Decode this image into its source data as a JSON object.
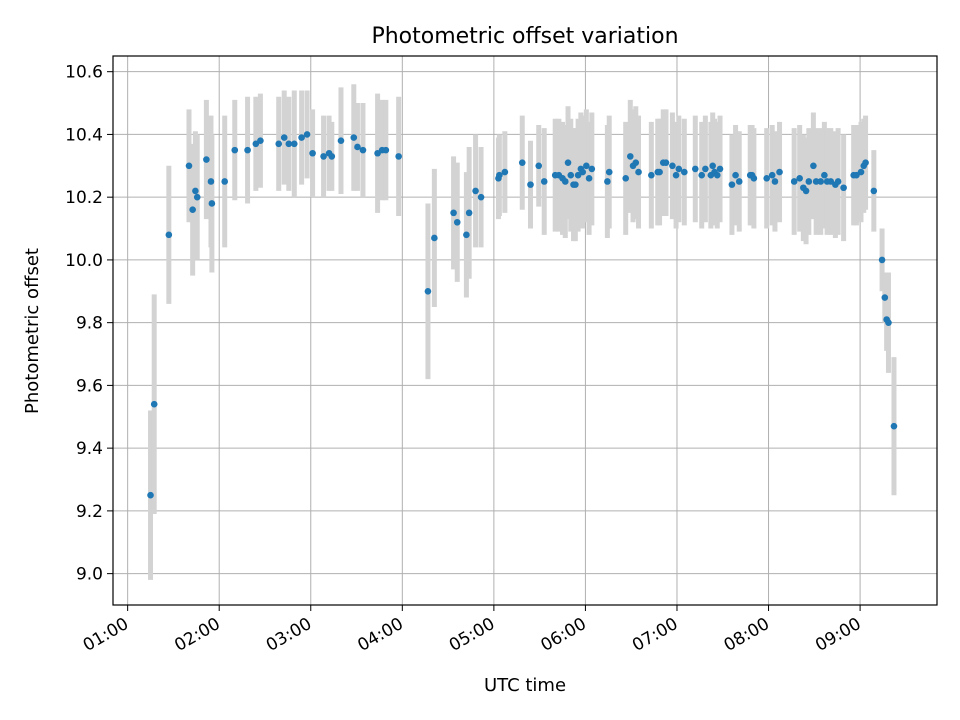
{
  "chart_data": {
    "type": "scatter",
    "title": "Photometric offset variation",
    "xlabel": "UTC time",
    "ylabel": "Photometric offset",
    "x_unit": "hours UTC",
    "xlim": [
      0.84,
      9.84
    ],
    "ylim": [
      8.9,
      10.65
    ],
    "xticks": [
      1,
      2,
      3,
      4,
      5,
      6,
      7,
      8,
      9
    ],
    "xtick_labels": [
      "01:00",
      "02:00",
      "03:00",
      "04:00",
      "05:00",
      "06:00",
      "07:00",
      "08:00",
      "09:00"
    ],
    "yticks": [
      9.0,
      9.2,
      9.4,
      9.6,
      9.8,
      10.0,
      10.2,
      10.4,
      10.6
    ],
    "ytick_labels": [
      "9.0",
      "9.2",
      "9.4",
      "9.6",
      "9.8",
      "10.0",
      "10.2",
      "10.4",
      "10.6"
    ],
    "grid": true,
    "colors": {
      "point": "#1f77b4",
      "errorbar": "#d3d3d3",
      "grid": "#b0b0b0"
    },
    "points": [
      [
        1.25,
        9.25,
        0.27
      ],
      [
        1.29,
        9.54,
        0.35
      ],
      [
        1.45,
        10.08,
        0.22
      ],
      [
        1.67,
        10.3,
        0.18
      ],
      [
        1.71,
        10.16,
        0.21
      ],
      [
        1.74,
        10.22,
        0.19
      ],
      [
        1.76,
        10.2,
        0.2
      ],
      [
        1.86,
        10.32,
        0.19
      ],
      [
        1.91,
        10.25,
        0.21
      ],
      [
        1.92,
        10.18,
        0.22
      ],
      [
        2.06,
        10.25,
        0.21
      ],
      [
        2.17,
        10.35,
        0.16
      ],
      [
        2.31,
        10.35,
        0.17
      ],
      [
        2.4,
        10.37,
        0.15
      ],
      [
        2.45,
        10.38,
        0.15
      ],
      [
        2.65,
        10.37,
        0.15
      ],
      [
        2.71,
        10.39,
        0.15
      ],
      [
        2.76,
        10.37,
        0.15
      ],
      [
        2.82,
        10.37,
        0.17
      ],
      [
        2.9,
        10.39,
        0.15
      ],
      [
        2.96,
        10.4,
        0.14
      ],
      [
        3.02,
        10.34,
        0.14
      ],
      [
        3.14,
        10.33,
        0.13
      ],
      [
        3.2,
        10.34,
        0.12
      ],
      [
        3.23,
        10.33,
        0.11
      ],
      [
        3.33,
        10.38,
        0.17
      ],
      [
        3.47,
        10.39,
        0.17
      ],
      [
        3.51,
        10.36,
        0.14
      ],
      [
        3.57,
        10.35,
        0.15
      ],
      [
        3.73,
        10.34,
        0.19
      ],
      [
        3.78,
        10.35,
        0.16
      ],
      [
        3.82,
        10.35,
        0.16
      ],
      [
        3.96,
        10.33,
        0.19
      ],
      [
        4.28,
        9.9,
        0.28
      ],
      [
        4.35,
        10.07,
        0.22
      ],
      [
        4.56,
        10.15,
        0.18
      ],
      [
        4.6,
        10.12,
        0.19
      ],
      [
        4.7,
        10.08,
        0.2
      ],
      [
        4.73,
        10.15,
        0.21
      ],
      [
        4.8,
        10.22,
        0.18
      ],
      [
        4.86,
        10.2,
        0.16
      ],
      [
        5.05,
        10.26,
        0.13
      ],
      [
        5.06,
        10.27,
        0.13
      ],
      [
        5.12,
        10.28,
        0.13
      ],
      [
        5.31,
        10.31,
        0.15
      ],
      [
        5.4,
        10.24,
        0.14
      ],
      [
        5.49,
        10.3,
        0.13
      ],
      [
        5.55,
        10.25,
        0.17
      ],
      [
        5.67,
        10.27,
        0.18
      ],
      [
        5.71,
        10.27,
        0.18
      ],
      [
        5.75,
        10.26,
        0.18
      ],
      [
        5.78,
        10.25,
        0.18
      ],
      [
        5.81,
        10.31,
        0.18
      ],
      [
        5.84,
        10.27,
        0.18
      ],
      [
        5.87,
        10.24,
        0.18
      ],
      [
        5.89,
        10.24,
        0.18
      ],
      [
        5.92,
        10.27,
        0.18
      ],
      [
        5.95,
        10.29,
        0.18
      ],
      [
        5.97,
        10.28,
        0.18
      ],
      [
        6.01,
        10.3,
        0.18
      ],
      [
        6.04,
        10.26,
        0.18
      ],
      [
        6.07,
        10.29,
        0.18
      ],
      [
        6.24,
        10.25,
        0.18
      ],
      [
        6.26,
        10.28,
        0.18
      ],
      [
        6.44,
        10.26,
        0.18
      ],
      [
        6.49,
        10.33,
        0.18
      ],
      [
        6.52,
        10.3,
        0.18
      ],
      [
        6.55,
        10.31,
        0.18
      ],
      [
        6.58,
        10.28,
        0.18
      ],
      [
        6.72,
        10.27,
        0.17
      ],
      [
        6.79,
        10.28,
        0.17
      ],
      [
        6.81,
        10.28,
        0.17
      ],
      [
        6.85,
        10.31,
        0.17
      ],
      [
        6.88,
        10.31,
        0.17
      ],
      [
        6.95,
        10.3,
        0.17
      ],
      [
        6.99,
        10.27,
        0.17
      ],
      [
        7.02,
        10.29,
        0.17
      ],
      [
        7.08,
        10.28,
        0.17
      ],
      [
        7.2,
        10.29,
        0.17
      ],
      [
        7.27,
        10.27,
        0.17
      ],
      [
        7.31,
        10.29,
        0.17
      ],
      [
        7.37,
        10.27,
        0.17
      ],
      [
        7.39,
        10.3,
        0.17
      ],
      [
        7.41,
        10.28,
        0.17
      ],
      [
        7.44,
        10.27,
        0.17
      ],
      [
        7.47,
        10.29,
        0.17
      ],
      [
        7.6,
        10.24,
        0.16
      ],
      [
        7.64,
        10.27,
        0.16
      ],
      [
        7.68,
        10.25,
        0.16
      ],
      [
        7.8,
        10.27,
        0.16
      ],
      [
        7.82,
        10.27,
        0.16
      ],
      [
        7.84,
        10.26,
        0.16
      ],
      [
        7.98,
        10.26,
        0.16
      ],
      [
        8.04,
        10.27,
        0.16
      ],
      [
        8.07,
        10.25,
        0.16
      ],
      [
        8.12,
        10.28,
        0.16
      ],
      [
        8.28,
        10.25,
        0.17
      ],
      [
        8.34,
        10.26,
        0.17
      ],
      [
        8.38,
        10.23,
        0.17
      ],
      [
        8.41,
        10.22,
        0.17
      ],
      [
        8.44,
        10.25,
        0.17
      ],
      [
        8.49,
        10.3,
        0.17
      ],
      [
        8.52,
        10.25,
        0.17
      ],
      [
        8.57,
        10.25,
        0.17
      ],
      [
        8.61,
        10.27,
        0.17
      ],
      [
        8.64,
        10.25,
        0.17
      ],
      [
        8.68,
        10.25,
        0.17
      ],
      [
        8.73,
        10.24,
        0.17
      ],
      [
        8.76,
        10.25,
        0.17
      ],
      [
        8.82,
        10.23,
        0.17
      ],
      [
        8.93,
        10.27,
        0.16
      ],
      [
        8.96,
        10.27,
        0.16
      ],
      [
        9.01,
        10.28,
        0.16
      ],
      [
        9.04,
        10.3,
        0.15
      ],
      [
        9.06,
        10.31,
        0.15
      ],
      [
        9.15,
        10.22,
        0.13
      ],
      [
        9.24,
        10.0,
        0.1
      ],
      [
        9.27,
        9.88,
        0.08
      ],
      [
        9.29,
        9.81,
        0.1
      ],
      [
        9.31,
        9.8,
        0.16
      ],
      [
        9.37,
        9.47,
        0.22
      ]
    ]
  }
}
